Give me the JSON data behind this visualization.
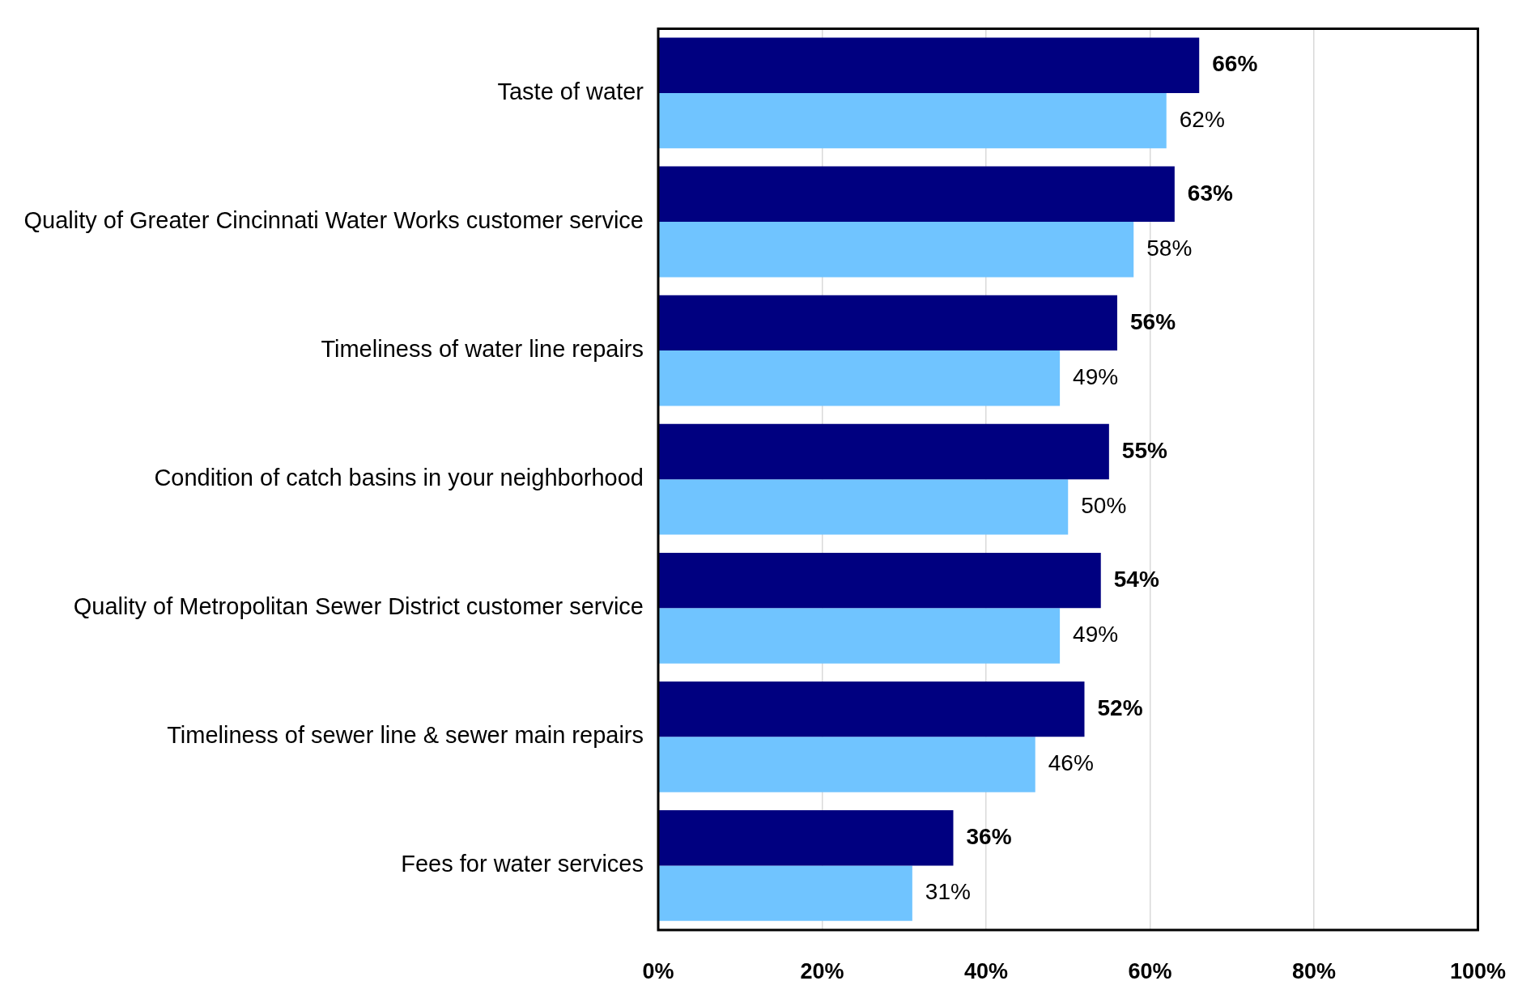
{
  "chart_data": {
    "type": "bar",
    "orientation": "horizontal",
    "categories": [
      "Taste of water",
      "Quality of Greater Cincinnati Water Works customer service",
      "Timeliness of water line repairs",
      "Condition of catch basins in your neighborhood",
      "Quality of Metropolitan Sewer District customer service",
      "Timeliness of sewer line & sewer main repairs",
      "Fees for water services"
    ],
    "series": [
      {
        "color": "#000080",
        "values": [
          66,
          63,
          56,
          55,
          54,
          52,
          36
        ],
        "value_labels": [
          "66%",
          "63%",
          "56%",
          "55%",
          "54%",
          "52%",
          "36%"
        ]
      },
      {
        "color": "#70c4ff",
        "values": [
          62,
          58,
          49,
          50,
          49,
          46,
          31
        ],
        "value_labels": [
          "62%",
          "58%",
          "49%",
          "50%",
          "49%",
          "46%",
          "31%"
        ]
      }
    ],
    "xlim": [
      0,
      100
    ],
    "xticks": [
      {
        "value": 0,
        "label": "0%"
      },
      {
        "value": 20,
        "label": "20%"
      },
      {
        "value": 40,
        "label": "40%"
      },
      {
        "value": 60,
        "label": "60%"
      },
      {
        "value": 80,
        "label": "80%"
      },
      {
        "value": 100,
        "label": "100%"
      }
    ],
    "grid": "x",
    "legend": false
  }
}
